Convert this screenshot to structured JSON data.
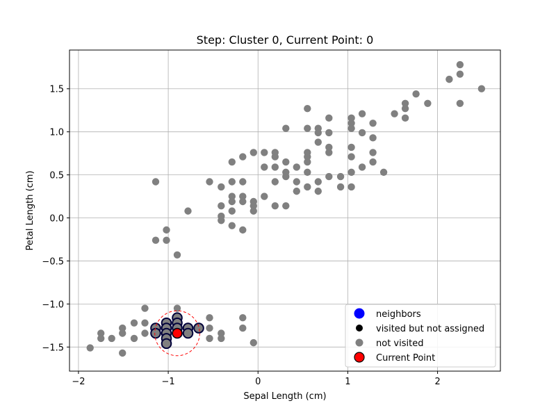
{
  "chart_data": {
    "type": "scatter",
    "title": "Step: Cluster 0, Current Point: 0",
    "xlabel": "Sepal Length (cm)",
    "ylabel": "Petal Length (cm)",
    "xlim": [
      -2.1,
      2.7
    ],
    "ylim": [
      -1.78,
      1.95
    ],
    "xticks": [
      -2,
      -1,
      0,
      1,
      2
    ],
    "yticks": [
      -1.5,
      -1.0,
      -0.5,
      0.0,
      0.5,
      1.0,
      1.5
    ],
    "grid": true,
    "legend_position": "lower right",
    "colors": {
      "neighbors": "#0000ff",
      "visited": "#000000",
      "not_visited": "#808080",
      "current": "#ff0000",
      "neighbor_outline": "#00003a",
      "radius_circle": "#ff0000",
      "grid": "#b0b0b0"
    },
    "neighbor_radius": 0.25,
    "series": [
      {
        "name": "neighbors",
        "points": [
          [
            -1.14,
            -1.28
          ],
          [
            -1.14,
            -1.34
          ],
          [
            -1.02,
            -1.22
          ],
          [
            -1.02,
            -1.28
          ],
          [
            -1.02,
            -1.34
          ],
          [
            -1.02,
            -1.4
          ],
          [
            -1.02,
            -1.46
          ],
          [
            -0.9,
            -1.16
          ],
          [
            -0.9,
            -1.22
          ],
          [
            -0.9,
            -1.28
          ],
          [
            -0.9,
            -1.34
          ],
          [
            -0.78,
            -1.28
          ],
          [
            -0.78,
            -1.34
          ],
          [
            -0.66,
            -1.28
          ]
        ]
      },
      {
        "name": "visited but not assigned",
        "points": []
      },
      {
        "name": "not visited",
        "points": [
          [
            -1.87,
            -1.51
          ],
          [
            -1.75,
            -1.34
          ],
          [
            -1.75,
            -1.4
          ],
          [
            -1.63,
            -1.4
          ],
          [
            -1.51,
            -1.28
          ],
          [
            -1.51,
            -1.34
          ],
          [
            -1.51,
            -1.57
          ],
          [
            -1.38,
            -1.22
          ],
          [
            -1.38,
            -1.4
          ],
          [
            -1.26,
            -1.05
          ],
          [
            -1.26,
            -1.22
          ],
          [
            -1.26,
            -1.34
          ],
          [
            -0.9,
            -1.05
          ],
          [
            -0.54,
            -1.16
          ],
          [
            -0.54,
            -1.28
          ],
          [
            -0.54,
            -1.4
          ],
          [
            -0.41,
            -1.34
          ],
          [
            -0.41,
            -1.4
          ],
          [
            -0.17,
            -1.16
          ],
          [
            -0.17,
            -1.28
          ],
          [
            -0.05,
            -1.45
          ],
          [
            -1.14,
            0.42
          ],
          [
            -1.14,
            -0.26
          ],
          [
            -1.02,
            -0.14
          ],
          [
            -1.02,
            -0.26
          ],
          [
            -0.9,
            -0.43
          ],
          [
            -0.78,
            0.08
          ],
          [
            -0.54,
            0.42
          ],
          [
            -0.41,
            0.36
          ],
          [
            -0.41,
            0.14
          ],
          [
            -0.41,
            0.02
          ],
          [
            -0.41,
            -0.03
          ],
          [
            -0.29,
            0.65
          ],
          [
            -0.29,
            0.42
          ],
          [
            -0.29,
            0.25
          ],
          [
            -0.29,
            0.19
          ],
          [
            -0.29,
            0.08
          ],
          [
            -0.29,
            -0.09
          ],
          [
            -0.17,
            0.71
          ],
          [
            -0.17,
            0.42
          ],
          [
            -0.17,
            0.25
          ],
          [
            -0.17,
            0.19
          ],
          [
            -0.17,
            -0.14
          ],
          [
            -0.05,
            0.76
          ],
          [
            -0.05,
            0.19
          ],
          [
            -0.05,
            0.14
          ],
          [
            -0.05,
            0.08
          ],
          [
            0.07,
            0.76
          ],
          [
            0.07,
            0.59
          ],
          [
            0.07,
            0.25
          ],
          [
            0.19,
            0.76
          ],
          [
            0.19,
            0.71
          ],
          [
            0.19,
            0.59
          ],
          [
            0.19,
            0.42
          ],
          [
            0.19,
            0.14
          ],
          [
            0.31,
            1.04
          ],
          [
            0.31,
            0.65
          ],
          [
            0.31,
            0.53
          ],
          [
            0.31,
            0.48
          ],
          [
            0.31,
            0.14
          ],
          [
            0.43,
            0.59
          ],
          [
            0.43,
            0.42
          ],
          [
            0.43,
            0.31
          ],
          [
            0.55,
            1.27
          ],
          [
            0.55,
            1.04
          ],
          [
            0.55,
            0.76
          ],
          [
            0.55,
            0.71
          ],
          [
            0.55,
            0.65
          ],
          [
            0.55,
            0.53
          ],
          [
            0.55,
            0.36
          ],
          [
            0.67,
            1.04
          ],
          [
            0.67,
            0.99
          ],
          [
            0.67,
            0.88
          ],
          [
            0.67,
            0.42
          ],
          [
            0.67,
            0.31
          ],
          [
            0.79,
            1.16
          ],
          [
            0.79,
            0.99
          ],
          [
            0.79,
            0.82
          ],
          [
            0.79,
            0.76
          ],
          [
            0.79,
            0.48
          ],
          [
            0.92,
            0.48
          ],
          [
            0.92,
            0.36
          ],
          [
            1.04,
            1.16
          ],
          [
            1.04,
            1.1
          ],
          [
            1.04,
            1.04
          ],
          [
            1.04,
            0.82
          ],
          [
            1.04,
            0.71
          ],
          [
            1.04,
            0.53
          ],
          [
            1.04,
            0.36
          ],
          [
            1.16,
            1.21
          ],
          [
            1.16,
            0.99
          ],
          [
            1.16,
            0.59
          ],
          [
            1.28,
            1.1
          ],
          [
            1.28,
            0.93
          ],
          [
            1.28,
            0.76
          ],
          [
            1.28,
            0.65
          ],
          [
            1.4,
            0.53
          ],
          [
            1.52,
            1.21
          ],
          [
            1.64,
            1.33
          ],
          [
            1.64,
            1.27
          ],
          [
            1.64,
            1.16
          ],
          [
            1.76,
            1.44
          ],
          [
            1.89,
            1.33
          ],
          [
            2.13,
            1.61
          ],
          [
            2.25,
            1.78
          ],
          [
            2.25,
            1.67
          ],
          [
            2.25,
            1.33
          ],
          [
            2.49,
            1.5
          ]
        ]
      },
      {
        "name": "Current Point",
        "points": [
          [
            -0.9,
            -1.34
          ]
        ]
      }
    ],
    "legend": [
      {
        "label": "neighbors",
        "marker": "neighbors"
      },
      {
        "label": "visited but not assigned",
        "marker": "visited"
      },
      {
        "label": "not visited",
        "marker": "not_visited"
      },
      {
        "label": "Current Point",
        "marker": "current"
      }
    ]
  }
}
